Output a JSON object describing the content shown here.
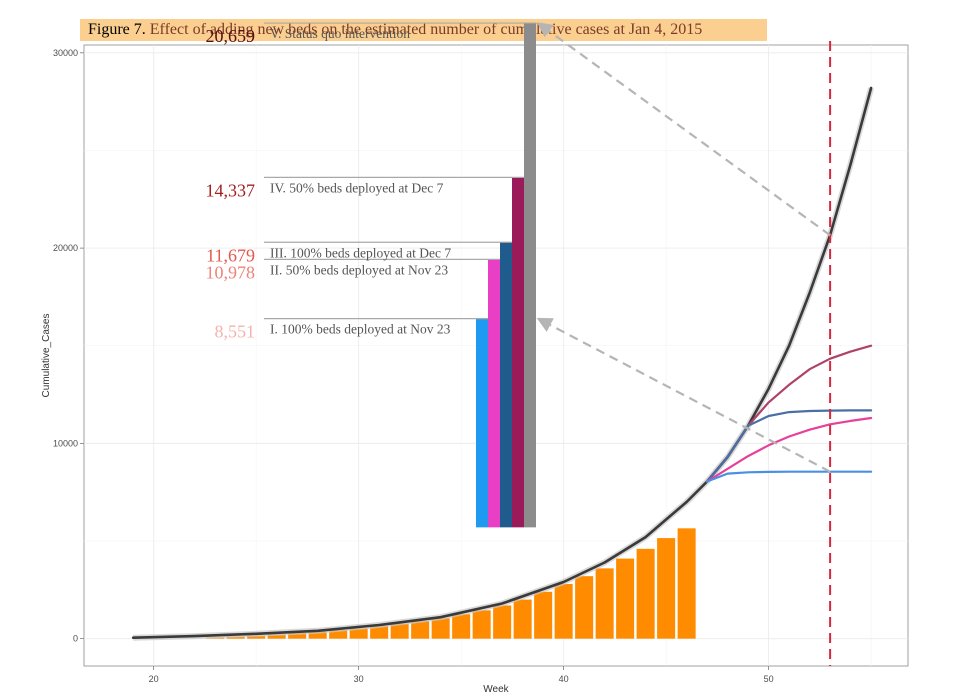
{
  "figure": {
    "label": "Figure 7.",
    "text": "Effect of adding new beds on the estimated number of cumulative cases at Jan 4, 2015"
  },
  "chart_data": {
    "type": "line",
    "title": "Figure 7. Effect of adding new beds on the estimated number of cumulative cases at Jan 4, 2015",
    "xlabel": "Week",
    "ylabel": "Cumulative_Cases",
    "xlim": [
      16.6,
      56.8
    ],
    "ylim": [
      -1400,
      30400
    ],
    "x_ticks": [
      20,
      30,
      40,
      50
    ],
    "y_ticks": [
      0,
      10000,
      20000,
      30000
    ],
    "y_tick_labels": [
      "0",
      "10000",
      "20000",
      "30000"
    ],
    "grid": true,
    "reference_line": {
      "x": 53,
      "style": "dashed",
      "color": "#d7263d"
    },
    "observed_bars": {
      "color": "#ff8c00",
      "x": [
        23,
        24,
        25,
        26,
        27,
        28,
        29,
        30,
        31,
        32,
        33,
        34,
        35,
        36,
        37,
        38,
        39,
        40,
        41,
        42,
        43,
        44,
        45,
        46
      ],
      "values": [
        70,
        110,
        160,
        220,
        290,
        360,
        440,
        530,
        640,
        770,
        900,
        1050,
        1250,
        1450,
        1700,
        2000,
        2400,
        2800,
        3200,
        3600,
        4100,
        4600,
        5150,
        5650
      ]
    },
    "series": [
      {
        "name": "V. Status quo intervention",
        "color": "#3a3a3a",
        "x": [
          19,
          22,
          25,
          28,
          31,
          34,
          37,
          40,
          42,
          44,
          45,
          46,
          47,
          48,
          49,
          50,
          51,
          52,
          53,
          54,
          55
        ],
        "y": [
          50,
          130,
          250,
          400,
          700,
          1100,
          1800,
          2900,
          3900,
          5200,
          6100,
          7000,
          8050,
          9300,
          10900,
          12800,
          15000,
          17700,
          20659,
          24300,
          28200
        ]
      },
      {
        "name": "IV. 50% beds deployed at Dec 7",
        "color": "#b0416a",
        "x": [
          47,
          48,
          49,
          50,
          51,
          52,
          53,
          54,
          55
        ],
        "y": [
          8050,
          9300,
          10900,
          12100,
          13000,
          13800,
          14337,
          14700,
          15000
        ]
      },
      {
        "name": "III. 100% beds deployed at Dec 7",
        "color": "#4a6fa5",
        "x": [
          47,
          48,
          49,
          50,
          51,
          52,
          53,
          54,
          55
        ],
        "y": [
          8050,
          9300,
          10900,
          11400,
          11600,
          11660,
          11679,
          11690,
          11690
        ]
      },
      {
        "name": "II. 50% beds deployed at Nov 23",
        "color": "#e8409a",
        "x": [
          47,
          48,
          49,
          50,
          51,
          52,
          53,
          54,
          55
        ],
        "y": [
          8050,
          8700,
          9350,
          9900,
          10350,
          10700,
          10978,
          11150,
          11300
        ]
      },
      {
        "name": "I. 100% beds deployed at Nov 23",
        "color": "#4a90e2",
        "x": [
          47,
          48,
          49,
          50,
          51,
          52,
          53,
          54,
          55
        ],
        "y": [
          8050,
          8450,
          8520,
          8540,
          8548,
          8550,
          8551,
          8551,
          8551
        ]
      }
    ],
    "inset_bars": [
      {
        "label": "I. 100% beds deployed at Nov 23",
        "value": 8551,
        "value_label": "8,551",
        "color": "#1e9bf0",
        "value_color": "#f3b2ad"
      },
      {
        "label": "II. 50% beds deployed at Nov 23",
        "value": 10978,
        "value_label": "10,978",
        "color": "#e83fc4",
        "value_color": "#ec8479"
      },
      {
        "label": "III. 100% beds deployed at Dec 7",
        "value": 11679,
        "value_label": "11,679",
        "color": "#1f5b8c",
        "value_color": "#e2584d"
      },
      {
        "label": "IV. 50% beds deployed at Dec 7",
        "value": 14337,
        "value_label": "14,337",
        "color": "#9b1b5a",
        "value_color": "#a51f1f"
      },
      {
        "label": "V. Status quo intervention",
        "value": 20659,
        "value_label": "20,659",
        "color": "#8c8c8c",
        "value_color": "#5a1010"
      }
    ]
  }
}
